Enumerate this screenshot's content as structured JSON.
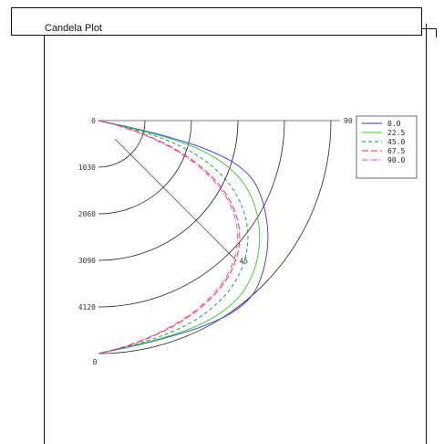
{
  "window": {
    "title": "Candela Plot"
  },
  "chart_data": {
    "type": "polar-candela",
    "title": "Candela Plot",
    "radial_ticks": [
      "0",
      "1030",
      "2060",
      "3090",
      "4120"
    ],
    "radial_max": 5150,
    "angle_labels": {
      "top": "90",
      "diagonal": "45",
      "bottom": "0"
    },
    "legend_position": "top-right",
    "angles_deg": [
      0,
      10,
      20,
      30,
      40,
      50,
      60,
      70,
      80,
      90,
      100,
      110,
      120,
      130,
      140,
      150,
      160,
      170,
      180
    ],
    "series": [
      {
        "name": "0.0",
        "color": "#3030ff",
        "dash": "",
        "values": [
          0,
          1150,
          2300,
          3230,
          3890,
          4230,
          4270,
          4170,
          4100,
          4080,
          4100,
          4170,
          4270,
          4230,
          3900,
          3220,
          2300,
          1150,
          0
        ]
      },
      {
        "name": "22.5",
        "color": "#33cc33",
        "dash": "",
        "values": [
          0,
          1080,
          2170,
          3080,
          3650,
          3880,
          3940,
          3920,
          3890,
          3880,
          3890,
          3920,
          3940,
          3880,
          3650,
          3080,
          2170,
          1080,
          0
        ]
      },
      {
        "name": "45.0",
        "color": "#009933",
        "dash": "4,3",
        "values": [
          0,
          1020,
          2020,
          2780,
          3200,
          3410,
          3520,
          3570,
          3590,
          3600,
          3590,
          3570,
          3520,
          3410,
          3200,
          2780,
          2020,
          1020,
          0
        ]
      },
      {
        "name": "67.5",
        "color": "#ff2020",
        "dash": "7,3",
        "values": [
          0,
          980,
          1880,
          2420,
          2790,
          3040,
          3210,
          3320,
          3380,
          3400,
          3380,
          3320,
          3210,
          3040,
          2790,
          2420,
          1880,
          980,
          0
        ]
      },
      {
        "name": "90.0",
        "color": "#ff33cc",
        "dash": "6,2,1,2",
        "values": [
          0,
          960,
          1820,
          2350,
          2720,
          2980,
          3150,
          3270,
          3330,
          3350,
          3330,
          3270,
          3150,
          2980,
          2720,
          2350,
          1820,
          960,
          0
        ]
      }
    ]
  }
}
